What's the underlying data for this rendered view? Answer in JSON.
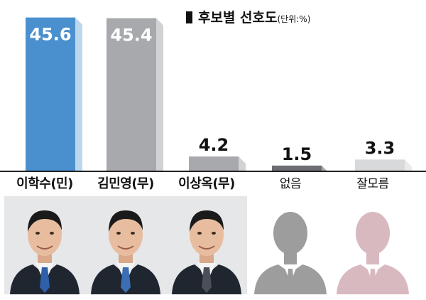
{
  "chart_data": {
    "type": "bar",
    "title": "후보별 선호도",
    "unit": "(단위:%)",
    "categories": [
      "이학수(민)",
      "김민영(무)",
      "이상옥(무)",
      "없음",
      "잘모름"
    ],
    "values": [
      45.6,
      45.4,
      4.2,
      1.5,
      3.3
    ],
    "value_labels": [
      "45.6",
      "45.4",
      "4.2",
      "1.5",
      "3.3"
    ],
    "ylim": [
      0,
      47
    ],
    "colors": [
      "#4a90cf",
      "#a7a9ac",
      "#a7a9ac",
      "#6d6e71",
      "#d8d9da"
    ],
    "side_colors": [
      "#bcd6ee",
      "#d1d2d4",
      "#d1d2d4",
      "#a7a9ac",
      "#ebebec"
    ],
    "label_colors": [
      "#ffffff",
      "#ffffff",
      "#111111",
      "#111111",
      "#111111"
    ],
    "grid": false
  },
  "photos": [
    {
      "kind": "portrait",
      "tie": "#2e5fa8"
    },
    {
      "kind": "portrait",
      "tie": "#3a6fb4"
    },
    {
      "kind": "portrait",
      "tie": "#4a4f58"
    },
    {
      "kind": "silhouette",
      "tint": "#9d9d9d"
    },
    {
      "kind": "silhouette",
      "tint": "#d9b9c0"
    }
  ]
}
